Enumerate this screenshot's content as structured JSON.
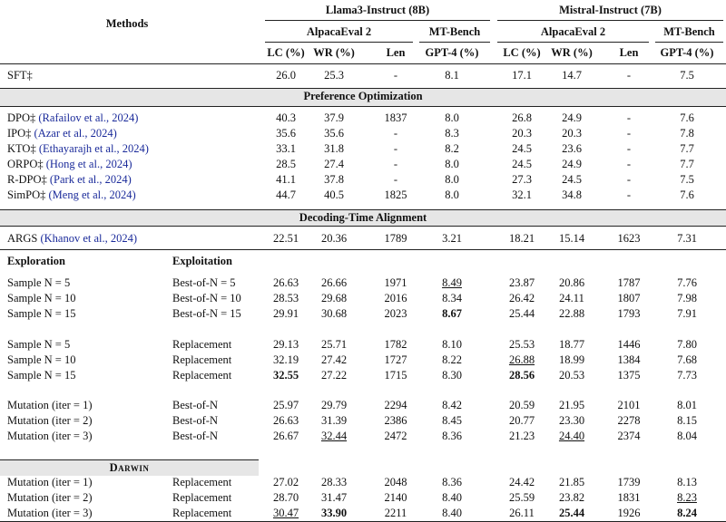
{
  "header": {
    "methods": "Methods",
    "groups": [
      {
        "title": "Llama3-Instruct (8B)",
        "subgroups": [
          "AlpacaEval 2",
          "MT-Bench"
        ],
        "columns": [
          "LC (%)",
          "WR (%)",
          "Len",
          "GPT-4 (%)"
        ]
      },
      {
        "title": "Mistral-Instruct (7B)",
        "subgroups": [
          "AlpacaEval 2",
          "MT-Bench"
        ],
        "columns": [
          "LC (%)",
          "WR (%)",
          "Len",
          "GPT-4 (%)"
        ]
      }
    ]
  },
  "sections": [
    {
      "rows": [
        {
          "method": "SFT‡",
          "values": [
            "26.0",
            "25.3",
            "-",
            "8.1",
            "17.1",
            "14.7",
            "-",
            "7.5"
          ]
        }
      ]
    },
    {
      "title": "Preference Optimization",
      "rows": [
        {
          "method": "DPO‡",
          "cite": "(Rafailov et al., 2024)",
          "values": [
            "40.3",
            "37.9",
            "1837",
            "8.0",
            "26.8",
            "24.9",
            "-",
            "7.6"
          ]
        },
        {
          "method": "IPO‡",
          "cite": "(Azar et al., 2024)",
          "values": [
            "35.6",
            "35.6",
            "-",
            "8.3",
            "20.3",
            "20.3",
            "-",
            "7.8"
          ]
        },
        {
          "method": "KTO‡",
          "cite": "(Ethayarajh et al., 2024)",
          "values": [
            "33.1",
            "31.8",
            "-",
            "8.2",
            "24.5",
            "23.6",
            "-",
            "7.7"
          ]
        },
        {
          "method": "ORPO‡",
          "cite": "(Hong et al., 2024)",
          "values": [
            "28.5",
            "27.4",
            "-",
            "8.0",
            "24.5",
            "24.9",
            "-",
            "7.7"
          ]
        },
        {
          "method": "R-DPO‡",
          "cite": "(Park et al., 2024)",
          "values": [
            "41.1",
            "37.8",
            "-",
            "8.0",
            "27.3",
            "24.5",
            "-",
            "7.5"
          ]
        },
        {
          "method": "SimPO‡",
          "cite": "(Meng et al., 2024)",
          "values": [
            "44.7",
            "40.5",
            "1825",
            "8.0",
            "32.1",
            "34.8",
            "-",
            "7.6"
          ]
        }
      ]
    },
    {
      "title": "Decoding-Time Alignment",
      "rows": [
        {
          "method": "ARGS",
          "cite": "(Khanov et al., 2024)",
          "values": [
            "22.51",
            "20.36",
            "1789",
            "3.21",
            "18.21",
            "15.14",
            "1623",
            "7.31"
          ]
        }
      ]
    },
    {
      "column_headers": [
        "Exploration",
        "Exploitation"
      ],
      "rows": [
        {
          "method": "Sample N = 5",
          "exploitation": "Best-of-N = 5",
          "values": [
            "26.63",
            "26.66",
            "1971",
            {
              "text": "8.49",
              "style": "underline"
            },
            "23.87",
            "20.86",
            "1787",
            "7.76"
          ]
        },
        {
          "method": "Sample N = 10",
          "exploitation": "Best-of-N = 10",
          "values": [
            "28.53",
            "29.68",
            "2016",
            "8.34",
            "26.42",
            "24.11",
            "1807",
            "7.98"
          ]
        },
        {
          "method": "Sample N = 15",
          "exploitation": "Best-of-N = 15",
          "values": [
            "29.91",
            "30.68",
            "2023",
            {
              "text": "8.67",
              "style": "bold"
            },
            "25.44",
            "22.88",
            "1793",
            "7.91"
          ]
        }
      ]
    },
    {
      "rows": [
        {
          "method": "Sample N = 5",
          "exploitation": "Replacement",
          "values": [
            "29.13",
            "25.71",
            "1782",
            "8.10",
            "25.53",
            "18.77",
            "1446",
            "7.80"
          ]
        },
        {
          "method": "Sample N = 10",
          "exploitation": "Replacement",
          "values": [
            "32.19",
            "27.42",
            "1727",
            "8.22",
            {
              "text": "26.88",
              "style": "underline"
            },
            "18.99",
            "1384",
            "7.68"
          ]
        },
        {
          "method": "Sample N = 15",
          "exploitation": "Replacement",
          "values": [
            {
              "text": "32.55",
              "style": "bold"
            },
            "27.22",
            "1715",
            "8.30",
            {
              "text": "28.56",
              "style": "bold"
            },
            "20.53",
            "1375",
            "7.73"
          ]
        }
      ]
    },
    {
      "rows": [
        {
          "method": "Mutation (iter = 1)",
          "exploitation": "Best-of-N",
          "values": [
            "25.97",
            "29.79",
            "2294",
            "8.42",
            "20.59",
            "21.95",
            "2101",
            "8.01"
          ]
        },
        {
          "method": "Mutation (iter = 2)",
          "exploitation": "Best-of-N",
          "values": [
            "26.63",
            "31.39",
            "2386",
            "8.45",
            "20.77",
            "23.30",
            "2278",
            "8.15"
          ]
        },
        {
          "method": "Mutation (iter = 3)",
          "exploitation": "Best-of-N",
          "values": [
            "26.67",
            {
              "text": "32.44",
              "style": "underline"
            },
            "2472",
            "8.36",
            "21.23",
            {
              "text": "24.40",
              "style": "underline"
            },
            "2374",
            "8.04"
          ]
        }
      ]
    },
    {
      "title": "Darwin",
      "rows": [
        {
          "method": "Mutation (iter = 1)",
          "exploitation": "Replacement",
          "values": [
            "27.02",
            "28.33",
            "2048",
            "8.36",
            "24.42",
            "21.85",
            "1739",
            "8.13"
          ]
        },
        {
          "method": "Mutation (iter = 2)",
          "exploitation": "Replacement",
          "values": [
            "28.70",
            "31.47",
            "2140",
            "8.40",
            "25.59",
            "23.82",
            "1831",
            {
              "text": "8.23",
              "style": "underline"
            }
          ]
        },
        {
          "method": "Mutation (iter = 3)",
          "exploitation": "Replacement",
          "values": [
            {
              "text": "30.47",
              "style": "underline"
            },
            {
              "text": "33.90",
              "style": "bold"
            },
            "2211",
            "8.40",
            "26.11",
            {
              "text": "25.44",
              "style": "bold"
            },
            "1926",
            {
              "text": "8.24",
              "style": "bold"
            }
          ]
        }
      ]
    }
  ]
}
